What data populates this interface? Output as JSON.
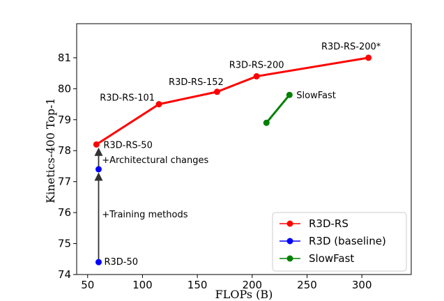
{
  "chart_data": {
    "type": "line",
    "xlabel": "FLOPs (B)",
    "ylabel": "Kinetics-400 Top-1",
    "xlim": [
      40,
      345
    ],
    "ylim": [
      74,
      82.1
    ],
    "xticks": [
      50,
      100,
      150,
      200,
      250,
      300
    ],
    "yticks": [
      74,
      75,
      76,
      77,
      78,
      79,
      80,
      81
    ],
    "grid": false,
    "legend_position": "bottom-right",
    "series": [
      {
        "name": "R3D-RS",
        "color": "#ff0000",
        "points": [
          {
            "x": 58,
            "y": 78.2,
            "label": "R3D-RS-50"
          },
          {
            "x": 115,
            "y": 79.5,
            "label": "R3D-RS-101"
          },
          {
            "x": 168,
            "y": 79.9,
            "label": "R3D-RS-152"
          },
          {
            "x": 204,
            "y": 80.4,
            "label": "R3D-RS-200"
          },
          {
            "x": 306,
            "y": 81.0,
            "label": "R3D-RS-200*"
          }
        ]
      },
      {
        "name": "R3D (baseline)",
        "color": "#0000ff",
        "points": [
          {
            "x": 60,
            "y": 74.4,
            "label": "R3D-50"
          },
          {
            "x": 60,
            "y": 77.4,
            "label": ""
          }
        ],
        "draw_line": false
      },
      {
        "name": "SlowFast",
        "color": "#008000",
        "points": [
          {
            "x": 213,
            "y": 78.9,
            "label": ""
          },
          {
            "x": 234,
            "y": 79.8,
            "label": "SlowFast"
          }
        ]
      }
    ],
    "annotations": [
      {
        "text": "+Training methods",
        "x": 63,
        "y": 75.85
      },
      {
        "text": "+Architectural changes",
        "x": 63,
        "y": 77.6
      }
    ],
    "arrows": [
      {
        "x": 60,
        "from_y": 74.4,
        "to_y": 77.3
      },
      {
        "x": 60,
        "from_y": 77.4,
        "to_y": 78.1
      }
    ],
    "arrow_color": "#333333"
  }
}
